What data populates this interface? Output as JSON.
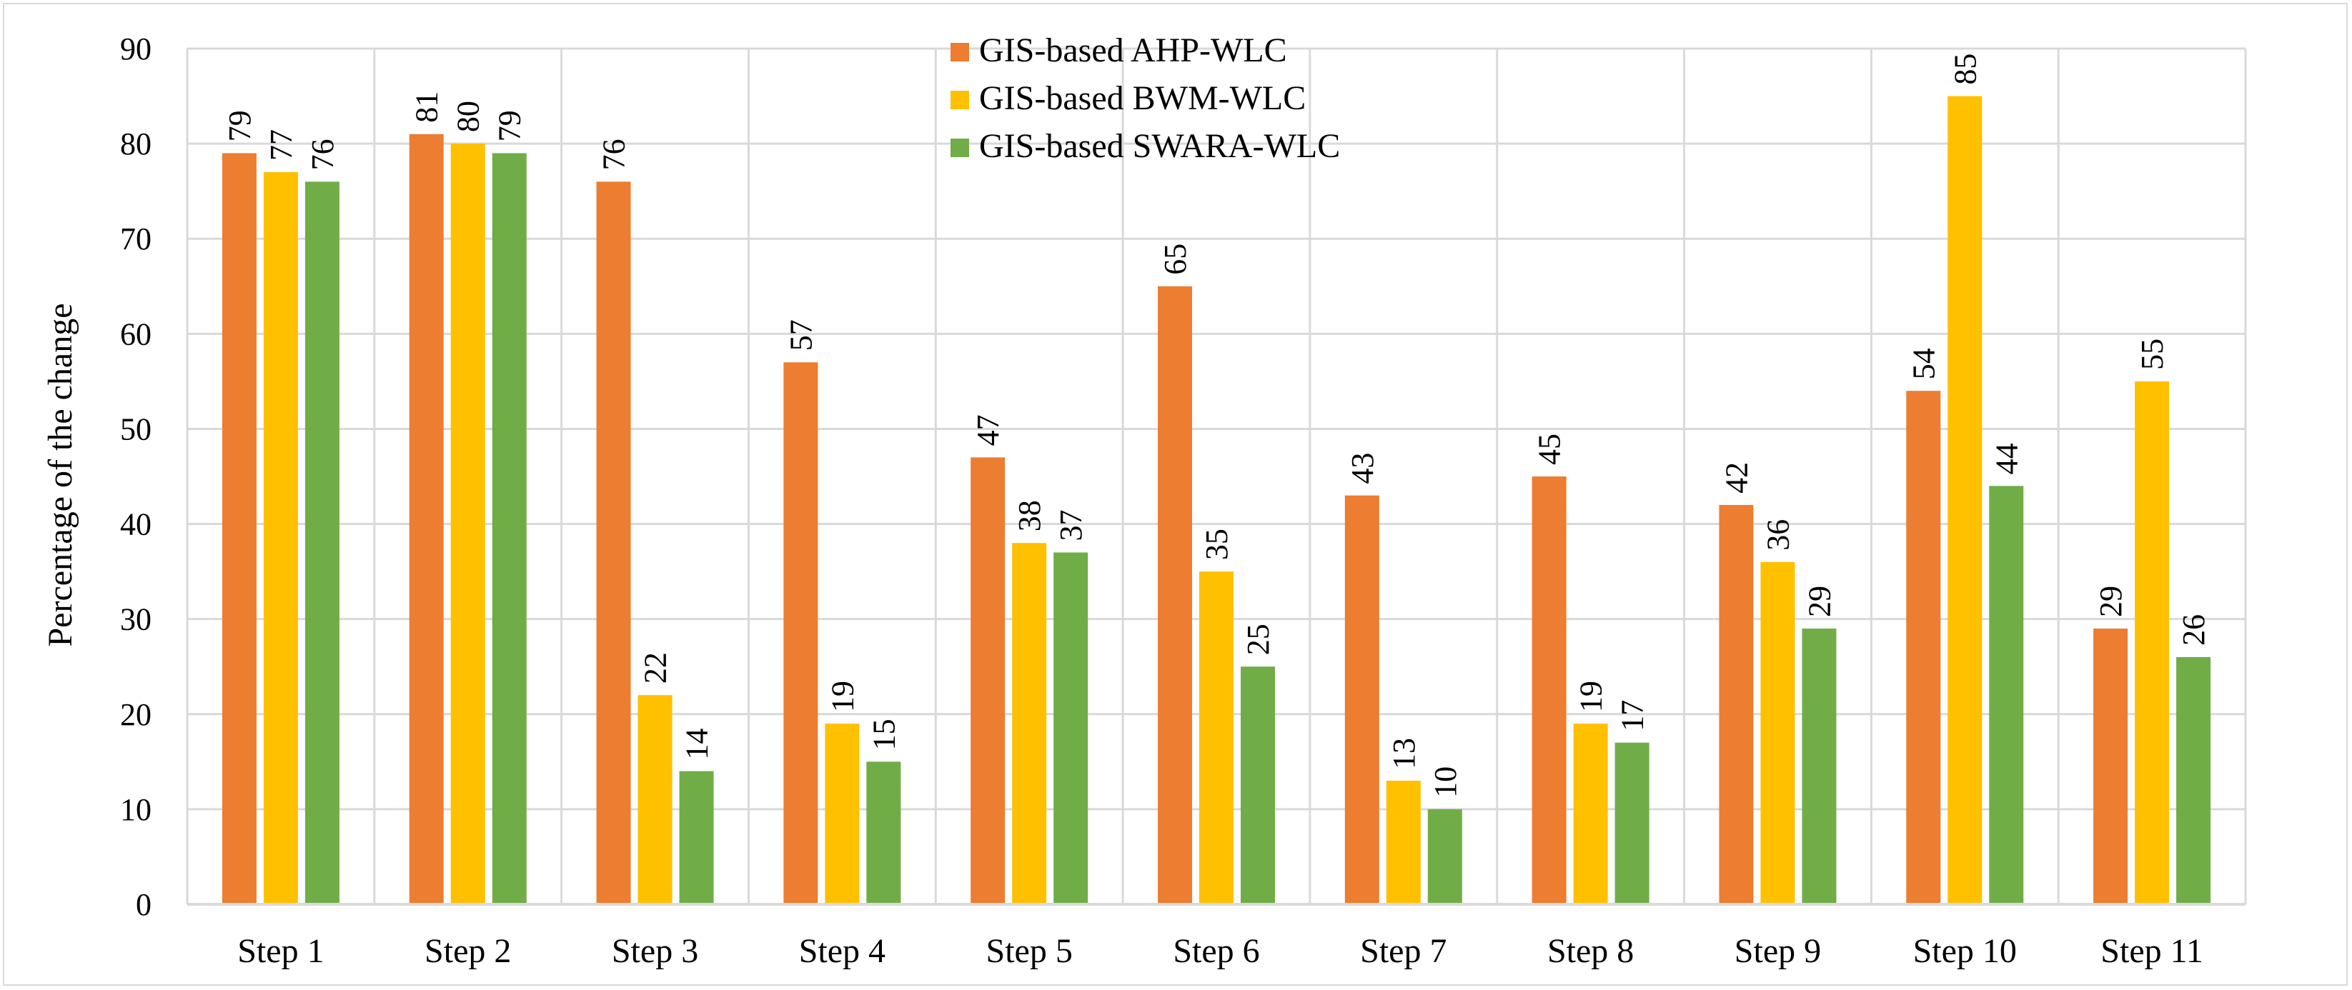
{
  "chart_data": {
    "type": "bar",
    "title": "",
    "xlabel": "",
    "ylabel": "Percentage of the change",
    "ylim": [
      0,
      90
    ],
    "yticks": [
      0,
      10,
      20,
      30,
      40,
      50,
      60,
      70,
      80,
      90
    ],
    "grid": true,
    "legend_position": "top-center",
    "categories": [
      "Step 1",
      "Step 2",
      "Step 3",
      "Step 4",
      "Step 5",
      "Step 6",
      "Step 7",
      "Step 8",
      "Step 9",
      "Step 10",
      "Step 11"
    ],
    "series": [
      {
        "name": "GIS-based AHP-WLC",
        "color": "#ed7d31",
        "values": [
          79,
          81,
          76,
          57,
          47,
          65,
          43,
          45,
          42,
          54,
          29
        ]
      },
      {
        "name": "GIS-based BWM-WLC",
        "color": "#ffc000",
        "values": [
          77,
          80,
          22,
          19,
          38,
          35,
          13,
          19,
          36,
          85,
          55
        ]
      },
      {
        "name": "GIS-based SWARA-WLC",
        "color": "#70ad47",
        "values": [
          76,
          79,
          14,
          15,
          37,
          25,
          10,
          17,
          29,
          44,
          26
        ]
      }
    ]
  }
}
